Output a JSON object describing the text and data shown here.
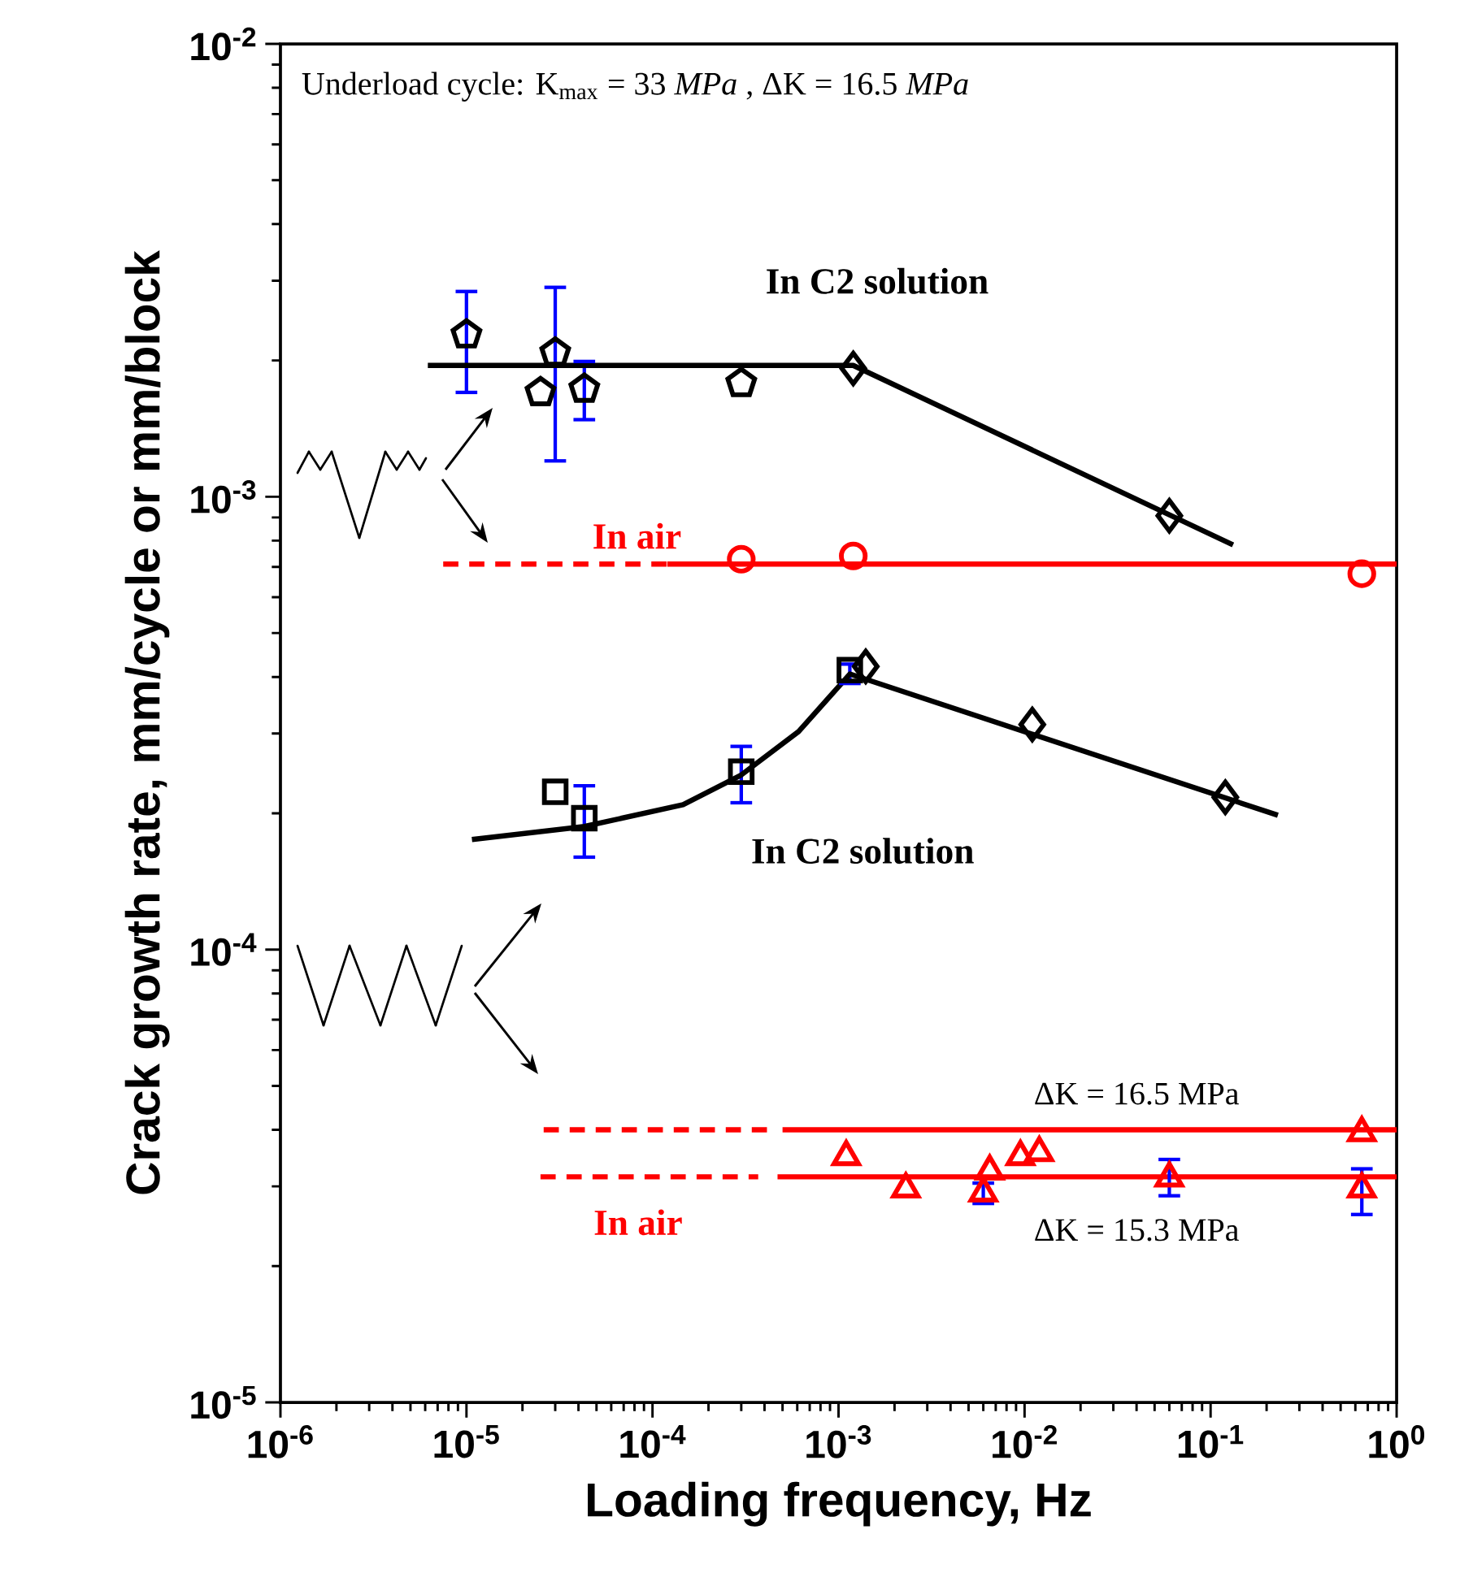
{
  "chart_data": {
    "type": "scatter",
    "log": "xy",
    "xlabel": "Loading frequency, Hz",
    "ylabel": "Crack growth rate, mm/cycle or mm/block",
    "xlim": [
      1e-06,
      1
    ],
    "ylim": [
      1e-05,
      0.01
    ],
    "xticks": [
      {
        "value": 1e-06,
        "label": "10$^{-6}$"
      },
      {
        "value": 1e-05,
        "label": "10$^{-5}$"
      },
      {
        "value": 0.0001,
        "label": "10$^{-4}$"
      },
      {
        "value": 0.001,
        "label": "10$^{-3}$"
      },
      {
        "value": 0.01,
        "label": "10$^{-2}$"
      },
      {
        "value": 0.1,
        "label": "10$^{-1}$"
      },
      {
        "value": 1,
        "label": "10$^{0}$"
      }
    ],
    "yticks": [
      {
        "value": 1e-05,
        "label": "10$^{-5}$"
      },
      {
        "value": 0.0001,
        "label": "10$^{-4}$"
      },
      {
        "value": 0.001,
        "label": "10$^{-3}$"
      },
      {
        "value": 0.01,
        "label": "10$^{-2}$"
      }
    ],
    "annotations": [
      "Underload cycle: K$_{max}$ = 33 *MPa* , ΔK = 16.5 *MPa*",
      {
        "text": "ΔK = 16.5 MPa",
        "x": 0.04,
        "y": 4e-05
      },
      {
        "text": "ΔK = 15.3 MPa",
        "x": 0.04,
        "y": 3.15e-05
      }
    ],
    "series": [
      {
        "color": "#000000",
        "x": [
          1e-05,
          2.5e-05,
          3e-05,
          4.3e-05,
          0.0003
        ],
        "values": [
          0.00228,
          0.0017,
          0.00208,
          0.00173,
          0.00178
        ],
        "errors": [
          [
            0.0017,
            0.00284
          ],
          null,
          [
            0.0012,
            0.0029
          ],
          [
            0.00148,
            0.00199
          ],
          null
        ]
      },
      {
        "marker": "diamond",
        "color": "#000000",
        "x": [
          0.0012,
          0.06
        ],
        "values": [
          0.00192,
          0.000908
        ]
      },
      {
        "type": "line",
        "name": "In C2 solution",
        "color": "#000000",
        "line_style": "solid",
        "x": [
          6.2e-06,
          0.0012,
          0.132
        ],
        "values": [
          0.00195,
          0.00195,
          0.000783
        ]
      },
      {
        "marker": "circle",
        "color": "#ff0000",
        "x": [
          0.0003,
          0.0012,
          0.65
        ],
        "values": [
          0.000728,
          0.00074,
          0.000676
        ]
      },
      {
        "type": "line",
        "name": "In air",
        "color": "#ff0000",
        "line_style": "dashed",
        "x": [
          7.5e-06,
          0.00012
        ],
        "values": [
          0.00071,
          0.00071
        ]
      },
      {
        "type": "line",
        "color": "#ff0000",
        "line_style": "solid",
        "x": [
          0.00012,
          1
        ],
        "values": [
          0.00071,
          0.00071
        ]
      },
      {
        "marker": "square",
        "color": "#000000",
        "x": [
          3e-05,
          4.3e-05,
          0.0003,
          0.00115
        ],
        "values": [
          0.000223,
          0.000195,
          0.000247,
          0.000414
        ],
        "errors": [
          null,
          [
            0.00016,
            0.00023
          ],
          [
            0.000211,
            0.000281
          ],
          [
            0.000387,
            0.000427
          ]
        ]
      },
      {
        "marker": "diamond",
        "color": "#000000",
        "x": [
          0.0014,
          0.011,
          0.12
        ],
        "values": [
          0.000422,
          0.000314,
          0.000217
        ]
      },
      {
        "type": "line",
        "name": "In C2 solution",
        "color": "#000000",
        "line_style": "solid",
        "x": [
          1.07e-05,
          4.3e-05,
          0.000146,
          0.0003,
          0.00061,
          0.00115,
          0.23
        ],
        "values": [
          0.000175,
          0.000187,
          0.000209,
          0.000243,
          0.000303,
          0.000406,
          0.000198
        ]
      },
      {
        "type": "line",
        "color": "#ff0000",
        "line_style": "dashed",
        "x": [
          2.6e-05,
          0.00043
        ],
        "values": [
          4e-05,
          4e-05
        ]
      },
      {
        "type": "line",
        "color": "#ff0000",
        "line_style": "solid",
        "x": [
          0.0005,
          1
        ],
        "values": [
          4e-05,
          4e-05
        ]
      },
      {
        "type": "line",
        "name": "In air",
        "color": "#ff0000",
        "line_style": "dashed",
        "x": [
          2.5e-05,
          0.00037
        ],
        "values": [
          3.15e-05,
          3.15e-05
        ]
      },
      {
        "type": "line",
        "color": "#ff0000",
        "line_style": "solid",
        "x": [
          0.00047,
          1
        ],
        "values": [
          3.15e-05,
          3.15e-05
        ]
      },
      {
        "marker": "triangle",
        "color": "#ff0000",
        "x": [
          0.0011,
          0.0023,
          0.006,
          0.0065,
          0.0095,
          0.012,
          0.06,
          0.65
        ],
        "values": [
          3.49e-05,
          2.96e-05,
          2.9e-05,
          3.24e-05,
          3.49e-05,
          3.56e-05,
          3.13e-05,
          2.96e-05
        ],
        "errors": [
          null,
          null,
          [
            2.75e-05,
            3.05e-05
          ],
          null,
          null,
          null,
          [
            2.86e-05,
            3.44e-05
          ],
          [
            2.6e-05,
            3.28e-05
          ]
        ]
      },
      {
        "marker": "triangle-down",
        "color": "#ff0000",
        "x": [
          0.65
        ],
        "values": [
          3.94e-05
        ]
      }
    ]
  }
}
